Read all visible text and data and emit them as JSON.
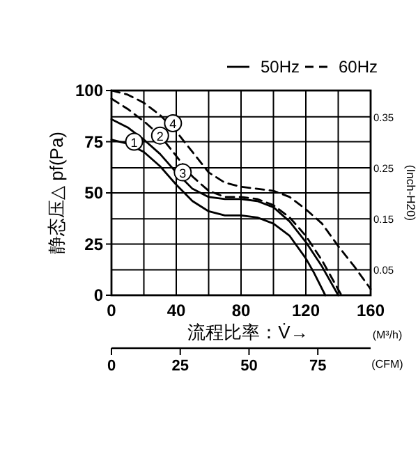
{
  "chart_data": {
    "type": "line",
    "xlabel": "流程比率：V̇→",
    "ylabel": "静态压△ pf(Pa)",
    "y2label": "(Inch-H20)",
    "x2label": "(CFM)",
    "xlim": [
      0,
      160
    ],
    "xticks": [
      0,
      {
        "value": 20,
        "label": null
      },
      40,
      {
        "value": 60,
        "label": null
      },
      80,
      {
        "value": 100,
        "label": null
      },
      120,
      {
        "value": 140,
        "label": null
      },
      160
    ],
    "ylim": [
      0,
      100
    ],
    "yticks": [
      0,
      25,
      50,
      75,
      100
    ],
    "y2lim": [
      0,
      0.4015
    ],
    "y2ticks": [
      0.05,
      0.15,
      0.25,
      0.35
    ],
    "x2lim": [
      0,
      94.2
    ],
    "x2ticks": [
      0,
      25,
      50,
      75
    ],
    "grid": true,
    "legend": "top right",
    "series": [
      {
        "name": "50Hz",
        "color": "#000000",
        "line_style": "solid",
        "x": [
          0,
          10,
          20,
          30,
          40,
          50,
          60,
          70,
          80,
          90,
          100,
          110,
          120,
          125,
          132
        ],
        "values": [
          76,
          74,
          70,
          63,
          54,
          46,
          41,
          39,
          39,
          38,
          35,
          29,
          18,
          11,
          0
        ]
      },
      {
        "name": "60Hz",
        "color": "#000000",
        "line_style": "dashed",
        "x": [
          0,
          10,
          20,
          30,
          40,
          50,
          60,
          70,
          80,
          90,
          100,
          110,
          120,
          130,
          142
        ],
        "values": [
          96,
          91,
          85,
          78,
          68,
          58,
          51,
          48,
          48,
          47,
          44,
          38,
          29,
          17,
          0
        ]
      },
      {
        "color": "#000000",
        "line_style": "solid",
        "x": [
          0,
          10,
          20,
          30,
          40,
          50,
          60,
          70,
          80,
          90,
          100,
          110,
          120,
          130,
          140
        ],
        "values": [
          86,
          82,
          76,
          69,
          60,
          52,
          48,
          47,
          47,
          46,
          43,
          36,
          26,
          14,
          0
        ]
      },
      {
        "color": "#000000",
        "line_style": "dashed",
        "x": [
          0,
          10,
          20,
          30,
          40,
          50,
          60,
          70,
          80,
          90,
          100,
          110,
          120,
          130,
          140,
          150,
          160
        ],
        "values": [
          100,
          98,
          94,
          88,
          80,
          70,
          60,
          55,
          53,
          52,
          51,
          48,
          42,
          35,
          24,
          14,
          3
        ]
      }
    ],
    "annotations": [
      {
        "text": "1",
        "x": 14,
        "y": 75
      },
      {
        "text": "2",
        "x": 30,
        "y": 78
      },
      {
        "text": "3",
        "x": 44,
        "y": 60
      },
      {
        "text": "4",
        "x": 38,
        "y": 84
      },
      "(M³/h)"
    ]
  }
}
